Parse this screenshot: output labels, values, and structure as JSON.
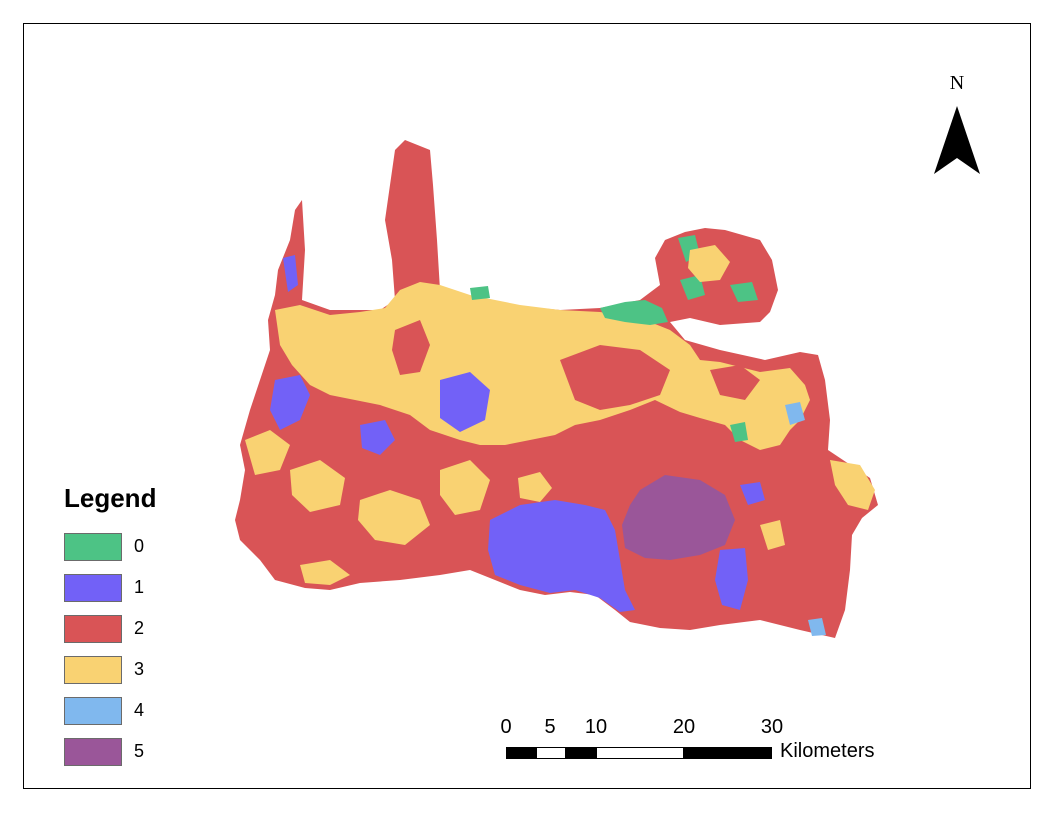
{
  "legend": {
    "title": "Legend",
    "items": [
      {
        "label": "0",
        "color": "#4dc385"
      },
      {
        "label": "1",
        "color": "#7261f7"
      },
      {
        "label": "2",
        "color": "#d95456"
      },
      {
        "label": "3",
        "color": "#f9d272"
      },
      {
        "label": "4",
        "color": "#80b8ee"
      },
      {
        "label": "5",
        "color": "#9a5699"
      }
    ]
  },
  "north_arrow": {
    "label": "N"
  },
  "scale_bar": {
    "ticks": [
      "0",
      "5",
      "10",
      "20",
      "30"
    ],
    "units": "Kilometers"
  }
}
